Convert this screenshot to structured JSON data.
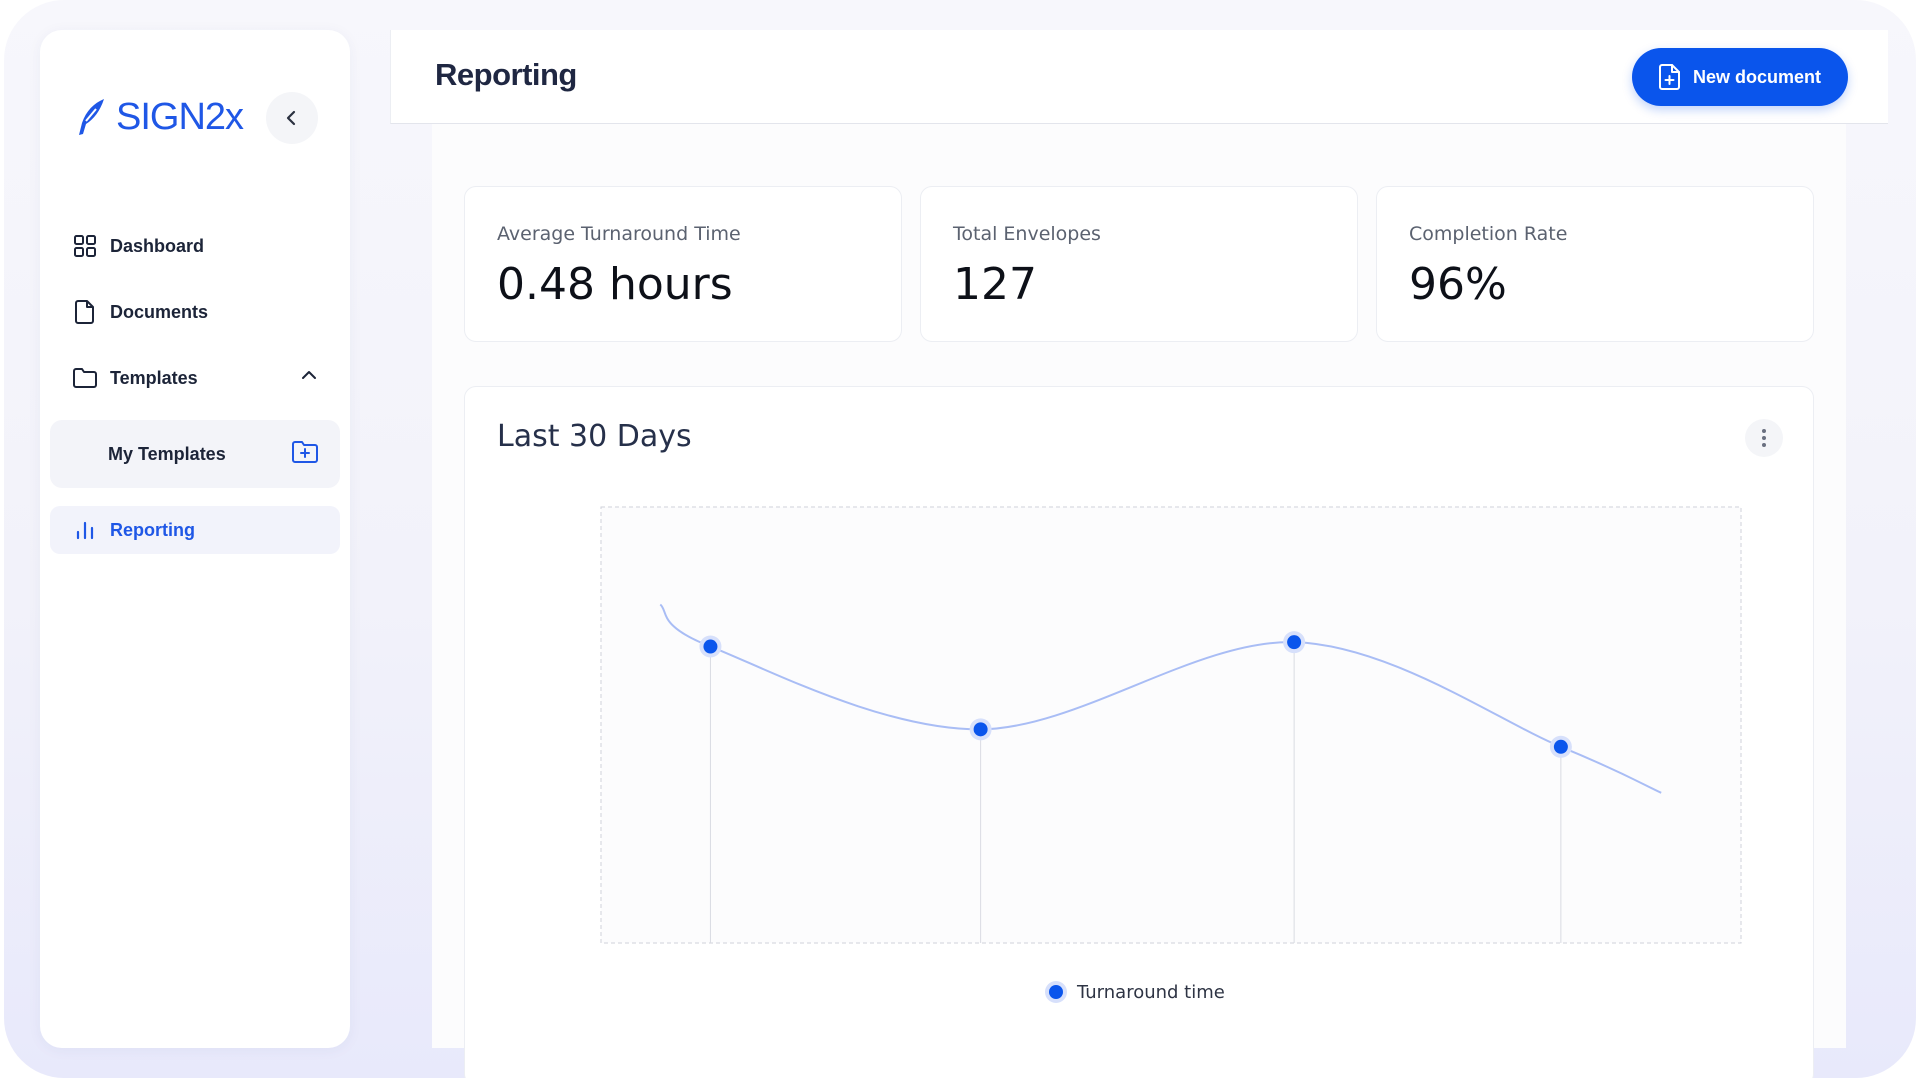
{
  "app": {
    "logo_text": "SIGN2x",
    "accent_color": "#0a55ec"
  },
  "sidebar": {
    "items": [
      {
        "label": "Dashboard",
        "icon": "grid-icon"
      },
      {
        "label": "Documents",
        "icon": "document-icon"
      },
      {
        "label": "Templates",
        "icon": "folder-icon",
        "expanded": true
      },
      {
        "label": "My Templates",
        "icon": "folder-plus-icon"
      },
      {
        "label": "Reporting",
        "icon": "bar-chart-icon",
        "active": true
      }
    ]
  },
  "header": {
    "title": "Reporting",
    "new_document_label": "New document"
  },
  "stats": [
    {
      "label": "Average Turnaround Time",
      "value": "0.48 hours"
    },
    {
      "label": "Total Envelopes",
      "value": "127"
    },
    {
      "label": "Completion Rate",
      "value": "96%"
    }
  ],
  "chart": {
    "title": "Last 30 Days",
    "legend_label": "Turnaround time"
  },
  "chart_data": {
    "type": "line",
    "title": "Last 30 Days",
    "xlabel": "",
    "ylabel": "",
    "grid": false,
    "legend_position": "bottom-center",
    "series": [
      {
        "name": "Turnaround time",
        "color": "#0a55ec",
        "y": [
          0.68,
          0.49,
          0.69,
          0.45
        ]
      }
    ],
    "y_range": [
      0,
      1
    ]
  }
}
